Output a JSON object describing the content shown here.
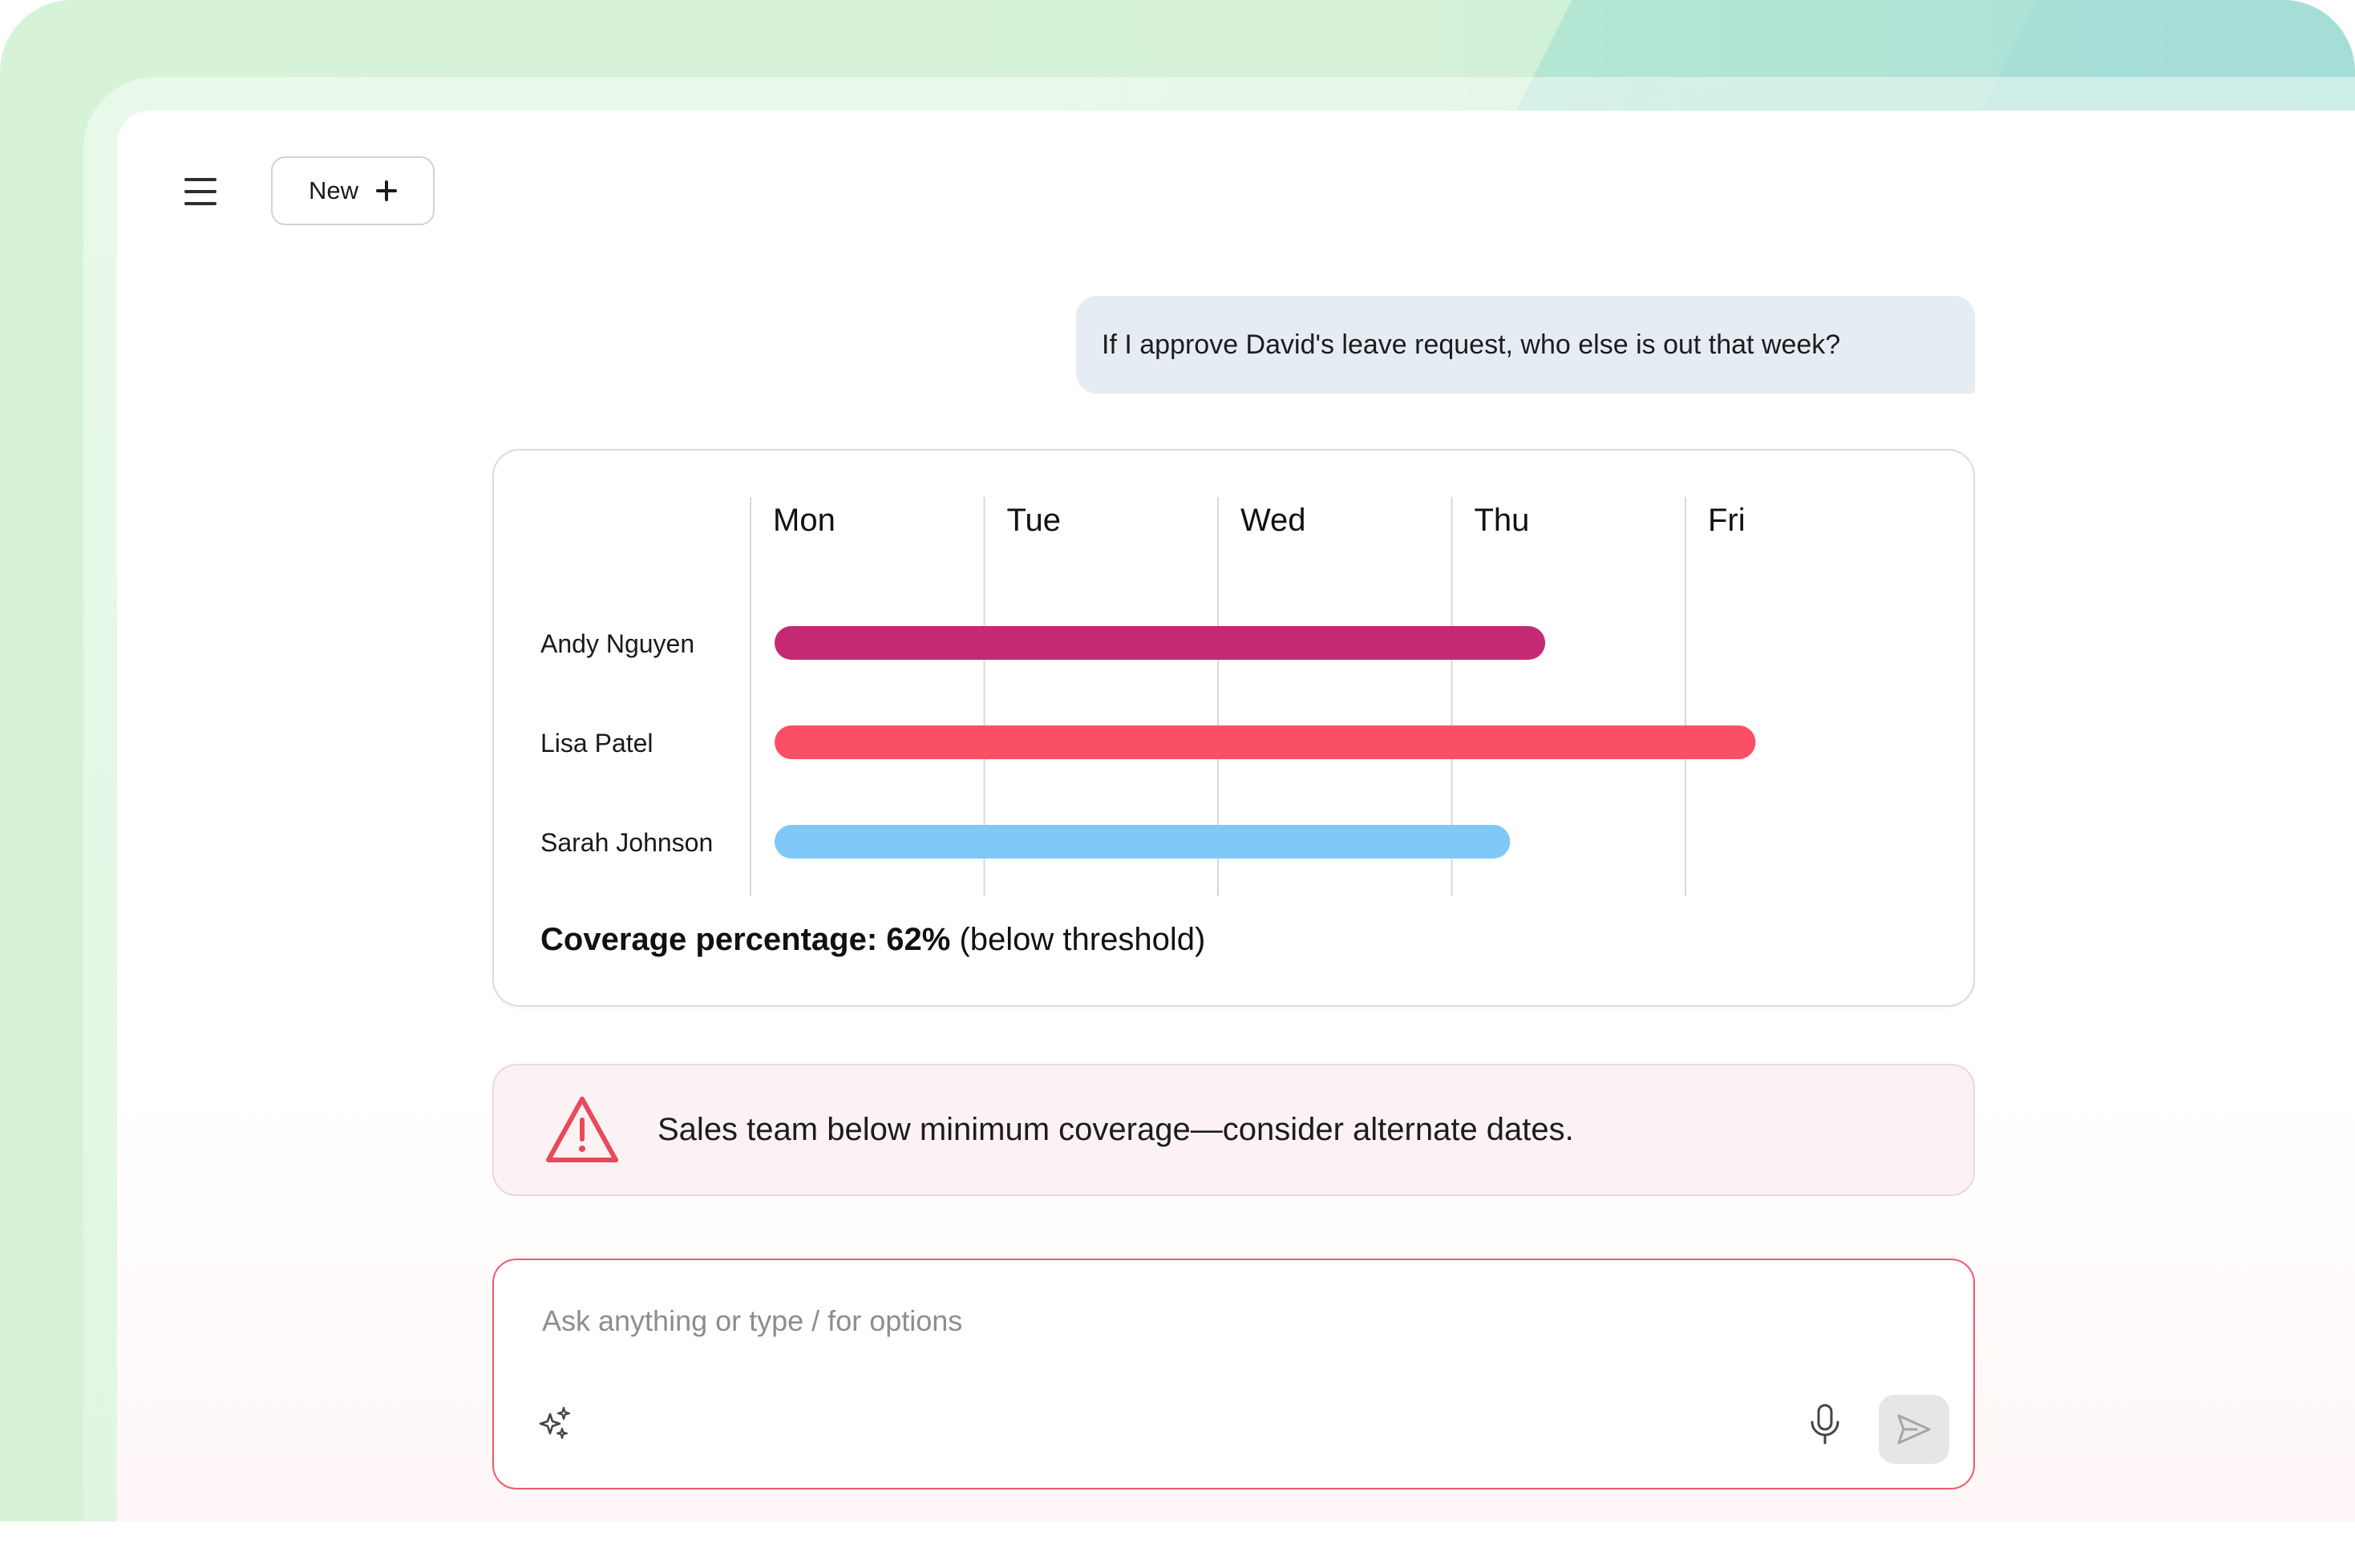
{
  "header": {
    "menu_icon": "hamburger-menu-icon",
    "new_button_label": "New",
    "new_button_icon": "plus-icon"
  },
  "conversation": {
    "user_message": "If I approve David's leave request, who else is out that week?"
  },
  "chart_data": {
    "type": "gantt",
    "categories": [
      "Mon",
      "Tue",
      "Wed",
      "Thu",
      "Fri"
    ],
    "series": [
      {
        "name": "Andy Nguyen",
        "start": 0,
        "end": 3.4,
        "color": "#c42a73"
      },
      {
        "name": "Lisa Patel",
        "start": 0,
        "end": 4.3,
        "color": "#fb4f66"
      },
      {
        "name": "Sarah Johnson",
        "start": 0,
        "end": 3.25,
        "color": "#7fc8f8"
      }
    ],
    "grid": true,
    "coverage": {
      "label": "Coverage percentage:",
      "value": "62%",
      "note": "(below threshold)"
    }
  },
  "alert": {
    "icon": "warning-triangle-icon",
    "text": "Sales team below minimum coverage—consider alternate dates.",
    "color": "#e8495c"
  },
  "composer": {
    "placeholder": "Ask anything or type / for options",
    "value": "",
    "sparkle_icon": "sparkle-icon",
    "mic_icon": "microphone-icon",
    "send_icon": "send-icon"
  },
  "colors": {
    "accent": "#ef5a6b",
    "user_bubble": "#e5ecf4"
  }
}
